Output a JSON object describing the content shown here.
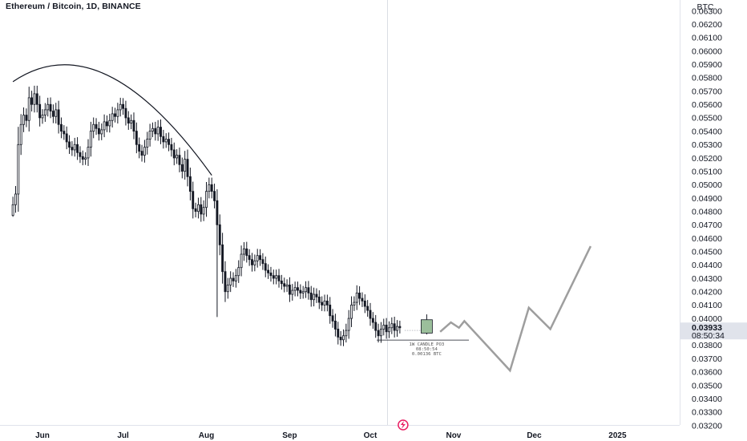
{
  "header": {
    "title": "Ethereum / Bitcoin, 1D, BINANCE"
  },
  "colors": {
    "up": "#ffffff",
    "down": "#131722",
    "wick": "#131722",
    "projection": "#9e9e9e",
    "price_label_bg": "#e0e3eb",
    "anomaly": "#e91e63"
  },
  "chart_data": {
    "type": "candlestick",
    "title": "Ethereum / Bitcoin, 1D, BINANCE",
    "currency": "BTC",
    "ylim": [
      0.032,
      0.063
    ],
    "yticks": [
      "0.03200",
      "0.03300",
      "0.03400",
      "0.03500",
      "0.03600",
      "0.03700",
      "0.03800",
      "0.03900",
      "0.04000",
      "0.04100",
      "0.04200",
      "0.04300",
      "0.04400",
      "0.04500",
      "0.04600",
      "0.04700",
      "0.04800",
      "0.04900",
      "0.05000",
      "0.05100",
      "0.05200",
      "0.05300",
      "0.05400",
      "0.05500",
      "0.05600",
      "0.05700",
      "0.05800",
      "0.05900",
      "0.06000",
      "0.06100",
      "0.06200",
      "0.06300"
    ],
    "xticks": [
      {
        "label": "Jun",
        "date": "2024-06-01"
      },
      {
        "label": "Jul",
        "date": "2024-07-01"
      },
      {
        "label": "Aug",
        "date": "2024-08-01"
      },
      {
        "label": "Sep",
        "date": "2024-09-01"
      },
      {
        "label": "Oct",
        "date": "2024-10-01"
      },
      {
        "label": "Nov",
        "date": "2024-11-01"
      },
      {
        "label": "Dec",
        "date": "2024-12-01"
      },
      {
        "label": "2025",
        "date": "2025-01-01"
      }
    ],
    "candles_close": [
      {
        "date": "2024-05-21",
        "c": 0.0485
      },
      {
        "date": "2024-05-22",
        "c": 0.0493
      },
      {
        "date": "2024-05-23",
        "c": 0.053
      },
      {
        "date": "2024-05-24",
        "c": 0.0545
      },
      {
        "date": "2024-05-25",
        "c": 0.0552
      },
      {
        "date": "2024-05-26",
        "c": 0.0548
      },
      {
        "date": "2024-05-27",
        "c": 0.0565
      },
      {
        "date": "2024-05-28",
        "c": 0.056
      },
      {
        "date": "2024-05-29",
        "c": 0.0568
      },
      {
        "date": "2024-05-30",
        "c": 0.056
      },
      {
        "date": "2024-05-31",
        "c": 0.055
      },
      {
        "date": "2024-06-01",
        "c": 0.0552
      },
      {
        "date": "2024-06-02",
        "c": 0.0556
      },
      {
        "date": "2024-06-03",
        "c": 0.056
      },
      {
        "date": "2024-06-04",
        "c": 0.0555
      },
      {
        "date": "2024-06-05",
        "c": 0.0551
      },
      {
        "date": "2024-06-06",
        "c": 0.0556
      },
      {
        "date": "2024-06-07",
        "c": 0.0545
      },
      {
        "date": "2024-06-08",
        "c": 0.054
      },
      {
        "date": "2024-06-09",
        "c": 0.0538
      },
      {
        "date": "2024-06-10",
        "c": 0.0532
      },
      {
        "date": "2024-06-11",
        "c": 0.0528
      },
      {
        "date": "2024-06-12",
        "c": 0.0526
      },
      {
        "date": "2024-06-13",
        "c": 0.053
      },
      {
        "date": "2024-06-14",
        "c": 0.0524
      },
      {
        "date": "2024-06-15",
        "c": 0.0521
      },
      {
        "date": "2024-06-16",
        "c": 0.0519
      },
      {
        "date": "2024-06-17",
        "c": 0.052
      },
      {
        "date": "2024-06-18",
        "c": 0.0528
      },
      {
        "date": "2024-06-19",
        "c": 0.054
      },
      {
        "date": "2024-06-20",
        "c": 0.0545
      },
      {
        "date": "2024-06-21",
        "c": 0.0542
      },
      {
        "date": "2024-06-22",
        "c": 0.0538
      },
      {
        "date": "2024-06-23",
        "c": 0.0541
      },
      {
        "date": "2024-06-24",
        "c": 0.0547
      },
      {
        "date": "2024-06-25",
        "c": 0.0544
      },
      {
        "date": "2024-06-26",
        "c": 0.0548
      },
      {
        "date": "2024-06-27",
        "c": 0.0553
      },
      {
        "date": "2024-06-28",
        "c": 0.0551
      },
      {
        "date": "2024-06-29",
        "c": 0.0556
      },
      {
        "date": "2024-06-30",
        "c": 0.056
      },
      {
        "date": "2024-07-01",
        "c": 0.0557
      },
      {
        "date": "2024-07-02",
        "c": 0.055
      },
      {
        "date": "2024-07-03",
        "c": 0.0546
      },
      {
        "date": "2024-07-04",
        "c": 0.0548
      },
      {
        "date": "2024-07-05",
        "c": 0.054
      },
      {
        "date": "2024-07-06",
        "c": 0.053
      },
      {
        "date": "2024-07-07",
        "c": 0.0525
      },
      {
        "date": "2024-07-08",
        "c": 0.0522
      },
      {
        "date": "2024-07-09",
        "c": 0.0528
      },
      {
        "date": "2024-07-10",
        "c": 0.0534
      },
      {
        "date": "2024-07-11",
        "c": 0.054
      },
      {
        "date": "2024-07-12",
        "c": 0.0542
      },
      {
        "date": "2024-07-13",
        "c": 0.0538
      },
      {
        "date": "2024-07-14",
        "c": 0.0543
      },
      {
        "date": "2024-07-15",
        "c": 0.0536
      },
      {
        "date": "2024-07-16",
        "c": 0.0532
      },
      {
        "date": "2024-07-17",
        "c": 0.0534
      },
      {
        "date": "2024-07-18",
        "c": 0.053
      },
      {
        "date": "2024-07-19",
        "c": 0.0526
      },
      {
        "date": "2024-07-20",
        "c": 0.052
      },
      {
        "date": "2024-07-21",
        "c": 0.0522
      },
      {
        "date": "2024-07-22",
        "c": 0.0515
      },
      {
        "date": "2024-07-23",
        "c": 0.051
      },
      {
        "date": "2024-07-24",
        "c": 0.0519
      },
      {
        "date": "2024-07-25",
        "c": 0.0506
      },
      {
        "date": "2024-07-26",
        "c": 0.0495
      },
      {
        "date": "2024-07-27",
        "c": 0.0482
      },
      {
        "date": "2024-07-28",
        "c": 0.048
      },
      {
        "date": "2024-07-29",
        "c": 0.0485
      },
      {
        "date": "2024-07-30",
        "c": 0.0478
      },
      {
        "date": "2024-07-31",
        "c": 0.0483
      },
      {
        "date": "2024-08-01",
        "c": 0.0495
      },
      {
        "date": "2024-08-02",
        "c": 0.05
      },
      {
        "date": "2024-08-03",
        "c": 0.0495
      },
      {
        "date": "2024-08-04",
        "c": 0.0488
      },
      {
        "date": "2024-08-05",
        "c": 0.047
      },
      {
        "date": "2024-08-06",
        "c": 0.0455
      },
      {
        "date": "2024-08-07",
        "c": 0.0435
      },
      {
        "date": "2024-08-08",
        "c": 0.042
      },
      {
        "date": "2024-08-09",
        "c": 0.0425
      },
      {
        "date": "2024-08-10",
        "c": 0.043
      },
      {
        "date": "2024-08-11",
        "c": 0.0428
      },
      {
        "date": "2024-08-12",
        "c": 0.0432
      },
      {
        "date": "2024-08-13",
        "c": 0.0438
      },
      {
        "date": "2024-08-14",
        "c": 0.0448
      },
      {
        "date": "2024-08-15",
        "c": 0.0452
      },
      {
        "date": "2024-08-16",
        "c": 0.0447
      },
      {
        "date": "2024-08-17",
        "c": 0.0444
      },
      {
        "date": "2024-08-18",
        "c": 0.044
      },
      {
        "date": "2024-08-19",
        "c": 0.0443
      },
      {
        "date": "2024-08-20",
        "c": 0.0447
      },
      {
        "date": "2024-08-21",
        "c": 0.0444
      },
      {
        "date": "2024-08-22",
        "c": 0.0441
      },
      {
        "date": "2024-08-23",
        "c": 0.0436
      },
      {
        "date": "2024-08-24",
        "c": 0.0434
      },
      {
        "date": "2024-08-25",
        "c": 0.0432
      },
      {
        "date": "2024-08-26",
        "c": 0.043
      },
      {
        "date": "2024-08-27",
        "c": 0.0432
      },
      {
        "date": "2024-08-28",
        "c": 0.0428
      },
      {
        "date": "2024-08-29",
        "c": 0.0426
      },
      {
        "date": "2024-08-30",
        "c": 0.0424
      },
      {
        "date": "2024-08-31",
        "c": 0.0425
      },
      {
        "date": "2024-09-01",
        "c": 0.0418
      },
      {
        "date": "2024-09-02",
        "c": 0.0421
      },
      {
        "date": "2024-09-03",
        "c": 0.0423
      },
      {
        "date": "2024-09-04",
        "c": 0.0421
      },
      {
        "date": "2024-09-05",
        "c": 0.0419
      },
      {
        "date": "2024-09-06",
        "c": 0.042
      },
      {
        "date": "2024-09-07",
        "c": 0.0423
      },
      {
        "date": "2024-09-08",
        "c": 0.0419
      },
      {
        "date": "2024-09-09",
        "c": 0.0414
      },
      {
        "date": "2024-09-10",
        "c": 0.0418
      },
      {
        "date": "2024-09-11",
        "c": 0.0416
      },
      {
        "date": "2024-09-12",
        "c": 0.0412
      },
      {
        "date": "2024-09-13",
        "c": 0.041
      },
      {
        "date": "2024-09-14",
        "c": 0.0413
      },
      {
        "date": "2024-09-15",
        "c": 0.041
      },
      {
        "date": "2024-09-16",
        "c": 0.0402
      },
      {
        "date": "2024-09-17",
        "c": 0.0398
      },
      {
        "date": "2024-09-18",
        "c": 0.0392
      },
      {
        "date": "2024-09-19",
        "c": 0.0386
      },
      {
        "date": "2024-09-20",
        "c": 0.0384
      },
      {
        "date": "2024-09-21",
        "c": 0.0387
      },
      {
        "date": "2024-09-22",
        "c": 0.0391
      },
      {
        "date": "2024-09-23",
        "c": 0.04
      },
      {
        "date": "2024-09-24",
        "c": 0.041
      },
      {
        "date": "2024-09-25",
        "c": 0.0412
      },
      {
        "date": "2024-09-26",
        "c": 0.0419
      },
      {
        "date": "2024-09-27",
        "c": 0.0415
      },
      {
        "date": "2024-09-28",
        "c": 0.0413
      },
      {
        "date": "2024-09-29",
        "c": 0.0409
      },
      {
        "date": "2024-09-30",
        "c": 0.0406
      },
      {
        "date": "2024-10-01",
        "c": 0.04
      },
      {
        "date": "2024-10-02",
        "c": 0.0397
      },
      {
        "date": "2024-10-03",
        "c": 0.0391
      },
      {
        "date": "2024-10-04",
        "c": 0.0387
      },
      {
        "date": "2024-10-05",
        "c": 0.0392
      },
      {
        "date": "2024-10-06",
        "c": 0.0395
      },
      {
        "date": "2024-10-07",
        "c": 0.039
      },
      {
        "date": "2024-10-08",
        "c": 0.0393
      },
      {
        "date": "2024-10-09",
        "c": 0.0396
      },
      {
        "date": "2024-10-10",
        "c": 0.0391
      },
      {
        "date": "2024-10-11",
        "c": 0.0394
      },
      {
        "date": "2024-10-12",
        "c": 0.0393
      }
    ],
    "current_price": {
      "value": "0.03933",
      "countdown": "08:50:34"
    },
    "projection": {
      "name": "projected path",
      "points": [
        {
          "date": "2024-10-27",
          "v": 0.039
        },
        {
          "date": "2024-10-31",
          "v": 0.0397
        },
        {
          "date": "2024-11-03",
          "v": 0.0393
        },
        {
          "date": "2024-11-05",
          "v": 0.0398
        },
        {
          "date": "2024-11-22",
          "v": 0.0361
        },
        {
          "date": "2024-11-29",
          "v": 0.0408
        },
        {
          "date": "2024-12-07",
          "v": 0.0392
        },
        {
          "date": "2024-12-22",
          "v": 0.0454
        }
      ]
    },
    "annotation": {
      "date": "2024-10-22",
      "lines": [
        "1W CANDLE PO3",
        "08:50:54",
        "0.00136 BTC"
      ],
      "candle": {
        "open": 0.0389,
        "close": 0.0399,
        "low": 0.0388,
        "high": 0.0403
      }
    },
    "rounding_arc": {
      "start": {
        "date": "2024-05-21",
        "v": 0.0577
      },
      "top": {
        "date": "2024-06-25",
        "v": 0.0582
      },
      "end": {
        "date": "2024-08-03",
        "v": 0.0507
      }
    },
    "grid": false,
    "legend": "none"
  }
}
